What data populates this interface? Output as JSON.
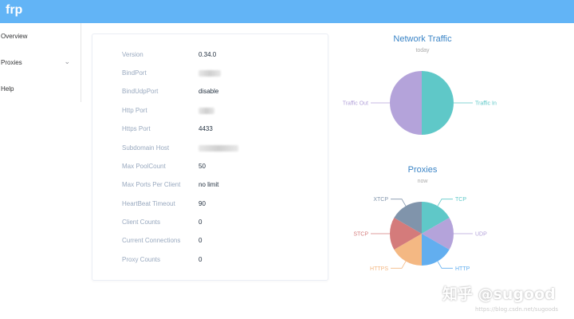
{
  "app": {
    "title": "frp"
  },
  "sidebar": {
    "items": [
      {
        "label": "Overview"
      },
      {
        "label": "Proxies"
      },
      {
        "label": "Help"
      }
    ]
  },
  "server_info": {
    "rows": [
      {
        "label": "Version",
        "value": "0.34.0"
      },
      {
        "label": "BindPort",
        "value": ""
      },
      {
        "label": "BindUdpPort",
        "value": "disable"
      },
      {
        "label": "Http Port",
        "value": ""
      },
      {
        "label": "Https Port",
        "value": "4433"
      },
      {
        "label": "Subdomain Host",
        "value": ""
      },
      {
        "label": "Max PoolCount",
        "value": "50"
      },
      {
        "label": "Max Ports Per Client",
        "value": "no limit"
      },
      {
        "label": "HeartBeat Timeout",
        "value": "90"
      },
      {
        "label": "Client Counts",
        "value": "0"
      },
      {
        "label": "Current Connections",
        "value": "0"
      },
      {
        "label": "Proxy Counts",
        "value": "0"
      }
    ]
  },
  "traffic_chart": {
    "title": "Network Traffic",
    "subtitle": "today"
  },
  "proxies_chart": {
    "title": "Proxies",
    "subtitle": "now"
  },
  "chart_data": [
    {
      "type": "pie",
      "title": "Network Traffic",
      "subtitle": "today",
      "categories": [
        "Traffic In",
        "Traffic Out"
      ],
      "values": [
        1,
        1
      ],
      "colors": [
        "#5fc8c8",
        "#b4a3da"
      ]
    },
    {
      "type": "pie",
      "title": "Proxies",
      "subtitle": "now",
      "categories": [
        "TCP",
        "UDP",
        "HTTP",
        "HTTPS",
        "STCP",
        "XTCP"
      ],
      "values": [
        1,
        1,
        1,
        1,
        1,
        1
      ],
      "colors": [
        "#5fc8c8",
        "#b4a3da",
        "#62aeef",
        "#f4b883",
        "#d47b7b",
        "#8094ab"
      ]
    }
  ],
  "watermark": {
    "text": "知乎 @sugood",
    "url": "https://blog.csdn.net/sugoods"
  }
}
